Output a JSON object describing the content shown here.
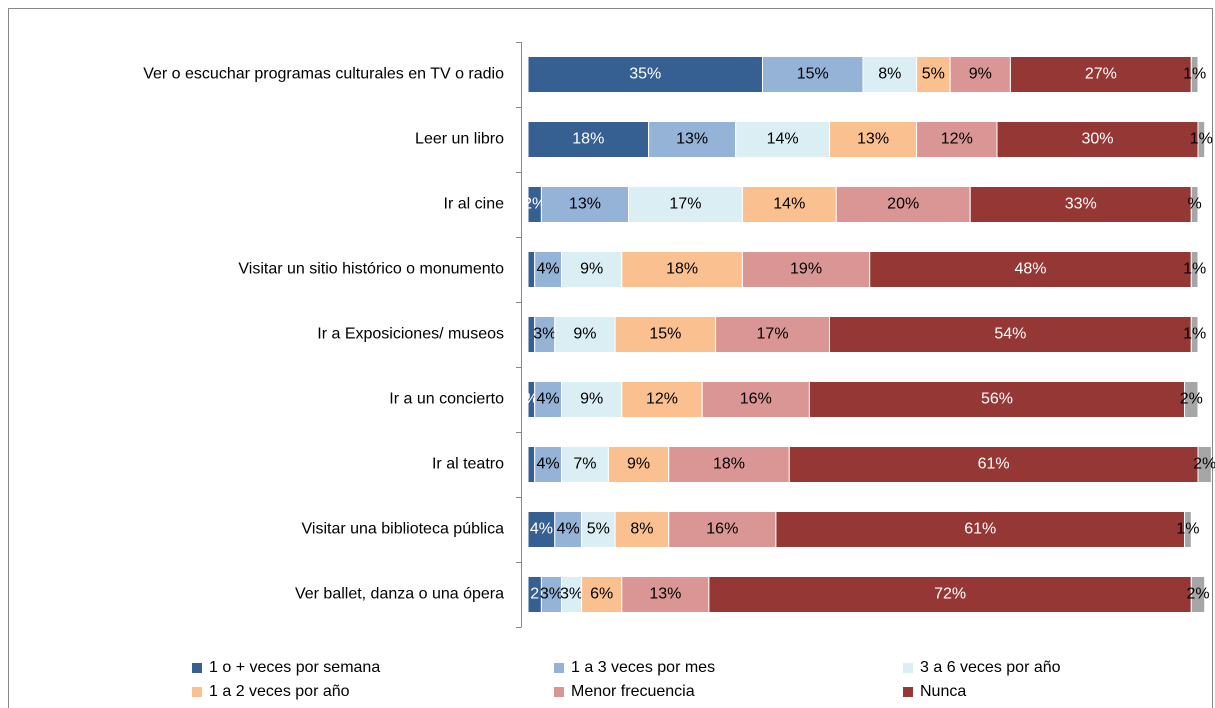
{
  "chart_data": {
    "type": "stacked-bar-horizontal",
    "categories": [
      "Ver o escuchar programas culturales en TV o radio",
      "Leer un libro",
      "Ir al cine",
      "Visitar un sitio histórico o monumento",
      "Ir a Exposiciones/ museos",
      "Ir a un concierto",
      "Ir al teatro",
      "Visitar una biblioteca pública",
      "Ver ballet, danza o una ópera"
    ],
    "xlim": [
      0,
      100
    ],
    "series": [
      {
        "name": "1 o + veces por semana",
        "color": "#376092",
        "values": [
          35,
          18,
          2,
          1,
          1,
          1,
          1,
          4,
          2
        ],
        "value_labels": [
          "35%",
          "18%",
          "2%",
          null,
          null,
          "%",
          null,
          "4%",
          "2"
        ]
      },
      {
        "name": "1 a 3 veces por mes",
        "color": "#95b3d7",
        "values": [
          15,
          13,
          13,
          4,
          3,
          4,
          4,
          4,
          3
        ],
        "value_labels": [
          "15%",
          "13%",
          "13%",
          "4%",
          "3%",
          "4%",
          "4%",
          "4%",
          "3%"
        ]
      },
      {
        "name": "3 a 6 veces por año",
        "color": "#dbeef4",
        "values": [
          8,
          14,
          17,
          9,
          9,
          9,
          7,
          5,
          3
        ],
        "value_labels": [
          "8%",
          "14%",
          "17%",
          "9%",
          "9%",
          "9%",
          "7%",
          "5%",
          "3%"
        ]
      },
      {
        "name": "1 a 2 veces por año",
        "color": "#fac090",
        "values": [
          5,
          13,
          14,
          18,
          15,
          12,
          9,
          8,
          6
        ],
        "value_labels": [
          "5%",
          "13%",
          "14%",
          "18%",
          "15%",
          "12%",
          "9%",
          "8%",
          "6%"
        ]
      },
      {
        "name": "Menor frecuencia",
        "color": "#d99694",
        "values": [
          9,
          12,
          20,
          19,
          17,
          16,
          18,
          16,
          13
        ],
        "value_labels": [
          "9%",
          "12%",
          "20%",
          "19%",
          "17%",
          "16%",
          "18%",
          "16%",
          "13%"
        ]
      },
      {
        "name": "Nunca",
        "color": "#953735",
        "values": [
          27,
          30,
          33,
          48,
          54,
          56,
          61,
          61,
          72
        ],
        "value_labels": [
          "27%",
          "30%",
          "33%",
          "48%",
          "54%",
          "56%",
          "61%",
          "61%",
          "72%"
        ]
      },
      {
        "color": "#a6a6a6",
        "values": [
          1,
          1,
          1,
          1,
          1,
          2,
          2,
          1,
          2
        ],
        "value_labels": [
          "1%",
          "1%",
          "%",
          "1%",
          "1%",
          "2%",
          "2%",
          "1%",
          "2%"
        ]
      }
    ]
  }
}
